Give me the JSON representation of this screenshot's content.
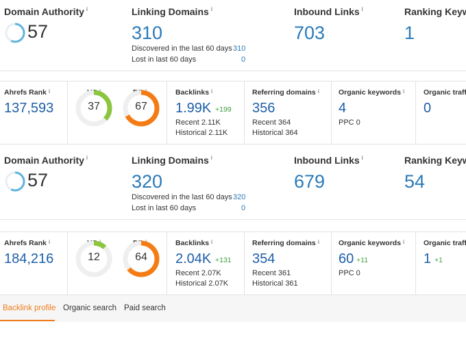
{
  "sections": [
    {
      "domain_authority": {
        "label": "Domain Authority",
        "value": 57
      },
      "linking_domains": {
        "label": "Linking Domains",
        "value": 310,
        "discovered_label": "Discovered in the last 60 days",
        "discovered_value": 310,
        "lost_label": "Lost in last 60 days",
        "lost_value": 0
      },
      "inbound_links": {
        "label": "Inbound Links",
        "value": 703
      },
      "ranking_keywords": {
        "label": "Ranking Keywo",
        "value": 1
      },
      "ahrefs_rank": {
        "label": "Ahrefs Rank",
        "value": "137,593"
      },
      "ur": {
        "label": "UR",
        "value": 37
      },
      "dr": {
        "label": "DR",
        "value": 67
      },
      "backlinks": {
        "label": "Backlinks",
        "value": "1.99K",
        "delta": "+199",
        "recent": "Recent 2.11K",
        "historical": "Historical 2.11K"
      },
      "referring_domains": {
        "label": "Referring domains",
        "value": 356,
        "recent": "Recent 364",
        "historical": "Historical 364"
      },
      "organic_keywords": {
        "label": "Organic keywords",
        "value": 4,
        "ppc": "PPC 0"
      },
      "organic_traffic": {
        "label": "Organic traffi",
        "value": 0
      }
    },
    {
      "domain_authority": {
        "label": "Domain Authority",
        "value": 57
      },
      "linking_domains": {
        "label": "Linking Domains",
        "value": 320,
        "discovered_label": "Discovered in the last 60 days",
        "discovered_value": 320,
        "lost_label": "Lost in last 60 days",
        "lost_value": 0
      },
      "inbound_links": {
        "label": "Inbound Links",
        "value": 679
      },
      "ranking_keywords": {
        "label": "Ranking Keywo",
        "value": 54
      },
      "ahrefs_rank": {
        "label": "Ahrefs Rank",
        "value": "184,216"
      },
      "ur": {
        "label": "UR",
        "value": 12
      },
      "dr": {
        "label": "DR",
        "value": 64
      },
      "backlinks": {
        "label": "Backlinks",
        "value": "2.04K",
        "delta": "+131",
        "recent": "Recent 2.07K",
        "historical": "Historical 2.07K"
      },
      "referring_domains": {
        "label": "Referring domains",
        "value": 354,
        "recent": "Recent 361",
        "historical": "Historical 361"
      },
      "organic_keywords": {
        "label": "Organic keywords",
        "value": 60,
        "delta": "+11",
        "ppc": "PPC 0"
      },
      "organic_traffic": {
        "label": "Organic traffi",
        "value": 1,
        "delta": "+1"
      }
    }
  ],
  "tabs": [
    "Backlink profile",
    "Organic search",
    "Paid search"
  ]
}
